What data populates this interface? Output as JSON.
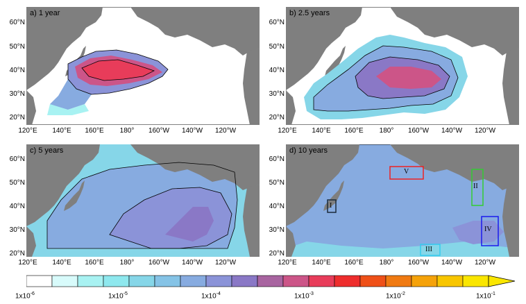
{
  "panels": [
    {
      "label": "a) 1 year"
    },
    {
      "label": "b) 2.5 years"
    },
    {
      "label": "c) 5 years"
    },
    {
      "label": "d) 10 years"
    }
  ],
  "lat_ticks": [
    "60°N",
    "50°N",
    "40°N",
    "30°N",
    "20°N"
  ],
  "lon_ticks": [
    "120°E",
    "140°E",
    "160°E",
    "180°",
    "160°W",
    "140°W",
    "120°W"
  ],
  "regions": [
    {
      "id": "I",
      "color": "#1a2a3a"
    },
    {
      "id": "II",
      "color": "#33cc33"
    },
    {
      "id": "III",
      "color": "#33ccee"
    },
    {
      "id": "IV",
      "color": "#1a1aee"
    },
    {
      "id": "V",
      "color": "#ee2222"
    }
  ],
  "colorbar": {
    "colors": [
      "#ffffff",
      "#d8fbfb",
      "#a8f2f2",
      "#8ee8ee",
      "#86d6e8",
      "#85c3e6",
      "#87abe0",
      "#8b93d8",
      "#8a78c6",
      "#a864a0",
      "#cc5588",
      "#e83c5a",
      "#ee2d2d",
      "#ef5018",
      "#f07a12",
      "#f5a20a",
      "#f8c600",
      "#fae600"
    ],
    "labels": [
      {
        "base": "1x10",
        "exp": "-6"
      },
      {
        "base": "1x10",
        "exp": "-5"
      },
      {
        "base": "1x10",
        "exp": "-4"
      },
      {
        "base": "1x10",
        "exp": "-3"
      },
      {
        "base": "1x10",
        "exp": "-2"
      },
      {
        "base": "1x10",
        "exp": "-1"
      }
    ]
  },
  "land_color": "#7f7f7f"
}
